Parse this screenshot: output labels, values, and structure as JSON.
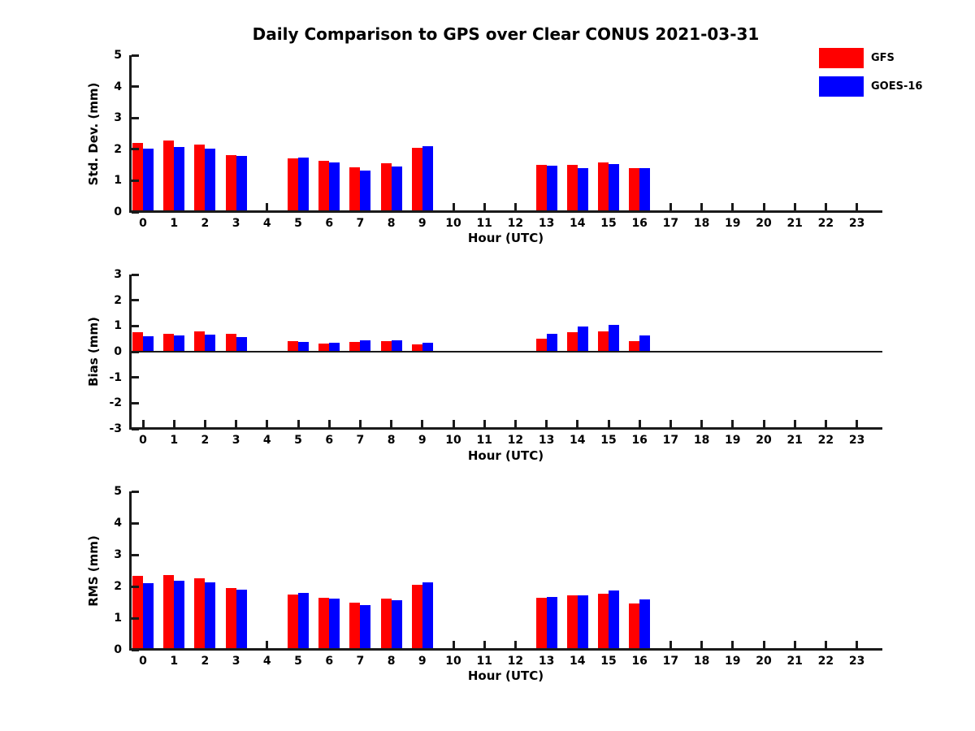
{
  "figure": {
    "title": "Daily Comparison to GPS over Clear CONUS 2021-03-31",
    "background": "#ffffff",
    "axis_color": "#1a1a1a"
  },
  "legend": {
    "position": "top-right-outside",
    "items": [
      {
        "label": "GFS",
        "color": "#ff0000"
      },
      {
        "label": "GOES-16",
        "color": "#0000ff"
      }
    ]
  },
  "chart_data": [
    {
      "type": "bar",
      "name": "std-dev-subplot",
      "ylabel": "Std. Dev. (mm)",
      "xlabel": "Hour (UTC)",
      "ylim": [
        0,
        5
      ],
      "yticks": [
        0,
        1,
        2,
        3,
        4,
        5
      ],
      "zero_line": false,
      "grid": false,
      "categories": [
        0,
        1,
        2,
        3,
        4,
        5,
        6,
        7,
        8,
        9,
        10,
        11,
        12,
        13,
        14,
        15,
        16,
        17,
        18,
        19,
        20,
        21,
        22,
        23
      ],
      "series": [
        {
          "name": "GFS",
          "color": "#ff0000",
          "values": [
            2.2,
            2.27,
            2.15,
            1.82,
            null,
            1.7,
            1.62,
            1.43,
            1.56,
            2.04,
            null,
            null,
            null,
            1.51,
            1.51,
            1.58,
            1.39,
            null,
            null,
            null,
            null,
            null,
            null,
            null
          ]
        },
        {
          "name": "GOES-16",
          "color": "#0000ff",
          "values": [
            2.03,
            2.08,
            2.03,
            1.79,
            null,
            1.74,
            1.58,
            1.33,
            1.45,
            2.1,
            null,
            null,
            null,
            1.48,
            1.39,
            1.54,
            1.41,
            null,
            null,
            null,
            null,
            null,
            null,
            null
          ]
        }
      ]
    },
    {
      "type": "bar",
      "name": "bias-subplot",
      "ylabel": "Bias (mm)",
      "xlabel": "Hour (UTC)",
      "ylim": [
        -3,
        3
      ],
      "yticks": [
        -3,
        -2,
        -1,
        0,
        1,
        2,
        3
      ],
      "zero_line": true,
      "grid": false,
      "categories": [
        0,
        1,
        2,
        3,
        4,
        5,
        6,
        7,
        8,
        9,
        10,
        11,
        12,
        13,
        14,
        15,
        16,
        17,
        18,
        19,
        20,
        21,
        22,
        23
      ],
      "series": [
        {
          "name": "GFS",
          "color": "#ff0000",
          "values": [
            0.75,
            0.7,
            0.8,
            0.7,
            null,
            0.42,
            0.32,
            0.38,
            0.42,
            0.27,
            null,
            null,
            null,
            0.5,
            0.76,
            0.79,
            0.41,
            null,
            null,
            null,
            null,
            null,
            null,
            null
          ]
        },
        {
          "name": "GOES-16",
          "color": "#0000ff",
          "values": [
            0.6,
            0.63,
            0.65,
            0.58,
            null,
            0.39,
            0.34,
            0.44,
            0.44,
            0.36,
            null,
            null,
            null,
            0.69,
            0.98,
            1.04,
            0.63,
            null,
            null,
            null,
            null,
            null,
            null,
            null
          ]
        }
      ]
    },
    {
      "type": "bar",
      "name": "rms-subplot",
      "ylabel": "RMS (mm)",
      "xlabel": "Hour (UTC)",
      "ylim": [
        0,
        5
      ],
      "yticks": [
        0,
        1,
        2,
        3,
        4,
        5
      ],
      "zero_line": false,
      "grid": false,
      "categories": [
        0,
        1,
        2,
        3,
        4,
        5,
        6,
        7,
        8,
        9,
        10,
        11,
        12,
        13,
        14,
        15,
        16,
        17,
        18,
        19,
        20,
        21,
        22,
        23
      ],
      "series": [
        {
          "name": "GFS",
          "color": "#ff0000",
          "values": [
            2.33,
            2.36,
            2.26,
            1.95,
            null,
            1.75,
            1.65,
            1.5,
            1.62,
            2.04,
            null,
            null,
            null,
            1.64,
            1.72,
            1.77,
            1.46,
            null,
            null,
            null,
            null,
            null,
            null,
            null
          ]
        },
        {
          "name": "GOES-16",
          "color": "#0000ff",
          "values": [
            2.11,
            2.17,
            2.13,
            1.9,
            null,
            1.8,
            1.62,
            1.42,
            1.56,
            2.14,
            null,
            null,
            null,
            1.67,
            1.72,
            1.87,
            1.59,
            null,
            null,
            null,
            null,
            null,
            null,
            null
          ]
        }
      ]
    }
  ]
}
